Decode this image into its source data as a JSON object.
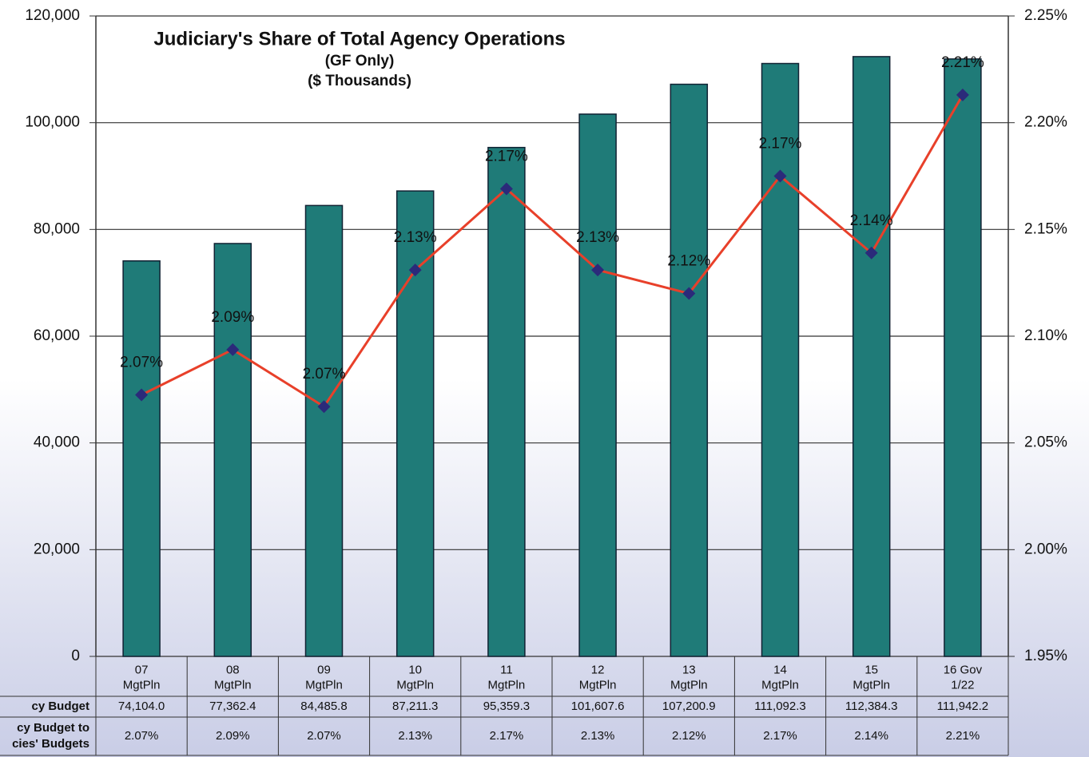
{
  "chart_data": {
    "type": "bar",
    "title": "Judiciary's Share of Total Agency Operations",
    "subtitle": [
      "(GF Only)",
      "($ Thousands)"
    ],
    "categories": [
      "07\nMgtPln",
      "08\nMgtPln",
      "09\nMgtPln",
      "10\nMgtPln",
      "11\nMgtPln",
      "12\nMgtPln",
      "13\nMgtPln",
      "14\nMgtPln",
      "15\nMgtPln",
      "16 Gov\n1/22"
    ],
    "series": [
      {
        "name": "cy Budget",
        "type": "bar",
        "color": "#1f7b78",
        "values": [
          74104.0,
          77362.4,
          84485.8,
          87211.3,
          95359.3,
          101607.6,
          107200.9,
          111092.3,
          112384.3,
          111942.2
        ],
        "value_labels": [
          "74,104.0",
          "77,362.4",
          "84,485.8",
          "87,211.3",
          "95,359.3",
          "101,607.6",
          "107,200.9",
          "111,092.3",
          "112,384.3",
          "111,942.2"
        ]
      },
      {
        "name": "cy Budget to\ncies' Budgets",
        "type": "line",
        "axis": "y2",
        "color": "#e8402a",
        "marker_color": "#2b2a7a",
        "values": [
          2.0725,
          2.0937,
          2.067,
          2.131,
          2.169,
          2.131,
          2.12,
          2.175,
          2.139,
          2.213
        ],
        "value_labels": [
          "2.07%",
          "2.09%",
          "2.07%",
          "2.13%",
          "2.17%",
          "2.13%",
          "2.12%",
          "2.17%",
          "2.14%",
          "2.21%"
        ]
      }
    ],
    "ylim": [
      0,
      120000
    ],
    "yticks": [
      0,
      {
        "value": 20000,
        "label": "20,000"
      },
      {
        "value": 40000,
        "label": "40,000"
      },
      {
        "value": 60000,
        "label": "60,000"
      },
      {
        "value": 80000,
        "label": "80,000"
      },
      {
        "value": 100000,
        "label": "100,000"
      },
      {
        "value": 120000,
        "label": "120,000"
      }
    ],
    "y2lim": [
      1.95,
      2.25
    ],
    "y2ticks": [
      {
        "value": 1.95,
        "label": "1.95%"
      },
      {
        "value": 2.0,
        "label": "2.00%"
      },
      {
        "value": 2.05,
        "label": "2.05%"
      },
      {
        "value": 2.1,
        "label": "2.10%"
      },
      {
        "value": 2.15,
        "label": "2.15%"
      },
      {
        "value": 2.2,
        "label": "2.20%"
      },
      {
        "value": 2.25,
        "label": "2.25%"
      }
    ],
    "grid": true
  }
}
